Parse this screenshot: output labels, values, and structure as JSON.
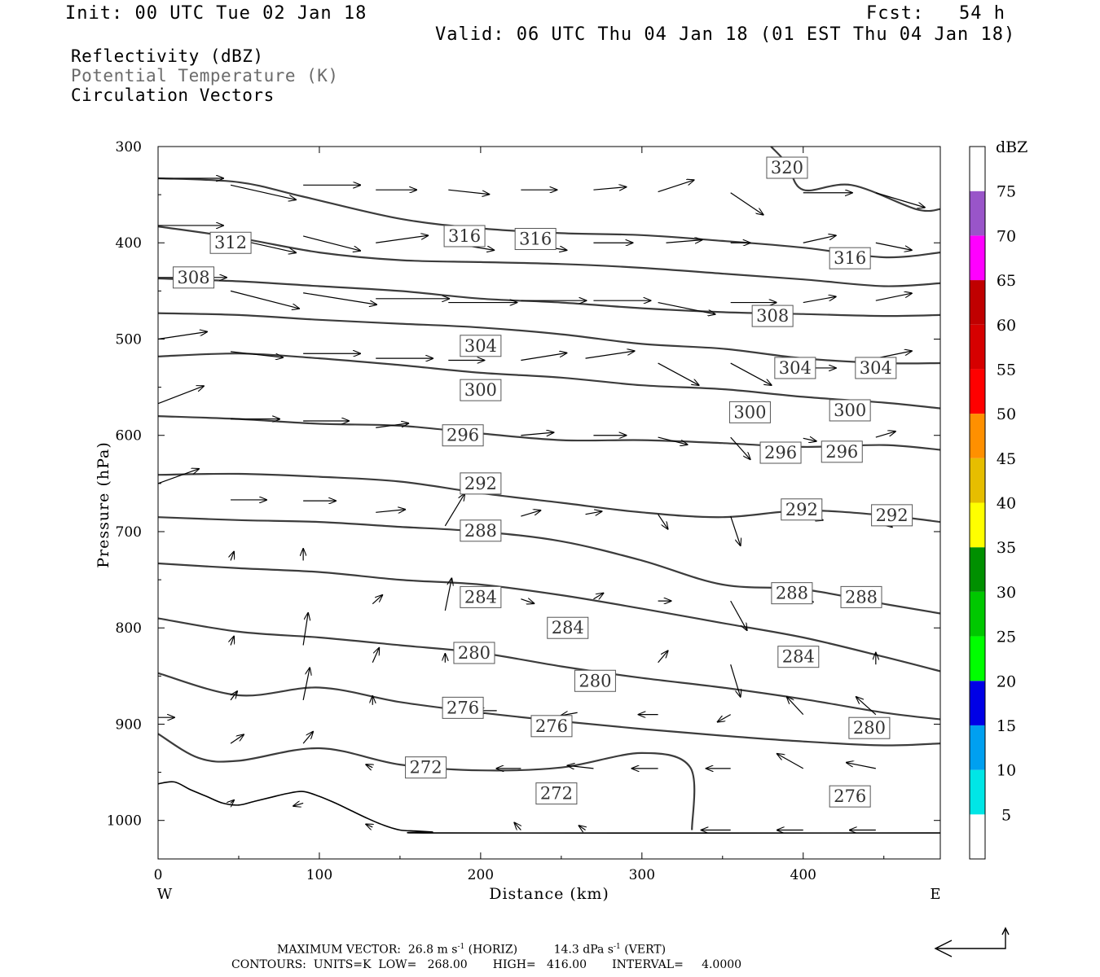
{
  "header": {
    "init": "Init: 00 UTC Tue 02 Jan 18",
    "fcst": "Fcst:   54 h",
    "valid": "Valid: 06 UTC Thu 04 Jan 18 (01 EST Thu 04 Jan 18)"
  },
  "fields": {
    "reflectivity": "Reflectivity (dBZ)",
    "theta": "Potential Temperature (K)",
    "vectors": "Circulation Vectors"
  },
  "footer": {
    "max_label": "MAXIMUM VECTOR:",
    "max_horiz": "26.8 m s",
    "max_horiz_exp": "-1",
    "max_horiz_tag": "(HORIZ)",
    "max_vert": "14.3 dPa s",
    "max_vert_exp": "-1",
    "max_vert_tag": "(VERT)",
    "contours": "CONTOURS:  UNITS=K  LOW=   268.00       HIGH=   416.00       INTERVAL=     4.0000"
  },
  "colorbar": {
    "title": "dBZ",
    "levels": [
      "5",
      "10",
      "15",
      "20",
      "25",
      "30",
      "35",
      "40",
      "45",
      "50",
      "55",
      "60",
      "65",
      "70",
      "75"
    ],
    "colors": [
      "#ffffff",
      "#00e6e6",
      "#00a0f0",
      "#0000e6",
      "#00ff00",
      "#00c800",
      "#009000",
      "#ffff00",
      "#e6be00",
      "#ff9000",
      "#ff0000",
      "#d60000",
      "#c00000",
      "#ff00ff",
      "#9955c9",
      "#ffffff"
    ]
  },
  "chart_data": {
    "type": "line",
    "xlabel": "Distance (km)",
    "ylabel": "Pressure (hPa)",
    "xlim": [
      0,
      485
    ],
    "ylim": [
      300,
      1040
    ],
    "y_scale": "linear, inverted",
    "grid": false,
    "xticks": [
      "0",
      "100",
      "200",
      "300",
      "400"
    ],
    "yticks": [
      "300",
      "400",
      "500",
      "600",
      "700",
      "800",
      "900",
      "1000"
    ],
    "x_endpoints": {
      "west": "W",
      "east": "E"
    },
    "contour_levels": [
      "272",
      "276",
      "280",
      "284",
      "288",
      "292",
      "296",
      "300",
      "304",
      "308",
      "312",
      "316",
      "320"
    ],
    "series": [
      {
        "name": "272",
        "x": [
          0,
          25,
          50,
          100,
          150,
          200,
          250,
          300,
          330,
          331
        ],
        "y": [
          910,
          935,
          938,
          925,
          942,
          948,
          945,
          930,
          945,
          1010
        ]
      },
      {
        "name": "276",
        "x": [
          0,
          50,
          100,
          150,
          200,
          250,
          300,
          350,
          400,
          450,
          485
        ],
        "y": [
          847,
          870,
          862,
          877,
          888,
          897,
          905,
          912,
          918,
          922,
          920
        ]
      },
      {
        "name": "280",
        "x": [
          0,
          50,
          100,
          150,
          200,
          250,
          300,
          350,
          400,
          450,
          485
        ],
        "y": [
          790,
          804,
          810,
          818,
          826,
          840,
          852,
          862,
          874,
          888,
          895
        ]
      },
      {
        "name": "284",
        "x": [
          0,
          50,
          100,
          150,
          200,
          250,
          300,
          350,
          400,
          450,
          485
        ],
        "y": [
          733,
          738,
          742,
          750,
          755,
          766,
          780,
          795,
          810,
          830,
          845
        ]
      },
      {
        "name": "288",
        "x": [
          0,
          50,
          100,
          150,
          200,
          250,
          300,
          350,
          400,
          450,
          485
        ],
        "y": [
          685,
          688,
          690,
          695,
          700,
          710,
          730,
          755,
          760,
          775,
          785
        ]
      },
      {
        "name": "292",
        "x": [
          0,
          50,
          100,
          150,
          200,
          250,
          300,
          350,
          400,
          450,
          485
        ],
        "y": [
          641,
          640,
          643,
          648,
          660,
          670,
          680,
          685,
          678,
          683,
          690
        ]
      },
      {
        "name": "296",
        "x": [
          0,
          50,
          100,
          150,
          200,
          250,
          300,
          350,
          400,
          450,
          485
        ],
        "y": [
          580,
          583,
          588,
          590,
          598,
          605,
          605,
          608,
          612,
          610,
          615
        ]
      },
      {
        "name": "300",
        "x": [
          0,
          50,
          100,
          150,
          200,
          250,
          300,
          350,
          400,
          450,
          485
        ],
        "y": [
          518,
          515,
          520,
          527,
          535,
          540,
          548,
          552,
          560,
          566,
          572
        ]
      },
      {
        "name": "304",
        "x": [
          0,
          50,
          100,
          150,
          200,
          250,
          300,
          350,
          400,
          450,
          485
        ],
        "y": [
          473,
          475,
          480,
          484,
          488,
          495,
          505,
          510,
          520,
          525,
          525
        ]
      },
      {
        "name": "308",
        "x": [
          0,
          50,
          100,
          150,
          200,
          250,
          300,
          350,
          400,
          450,
          485
        ],
        "y": [
          437,
          440,
          445,
          450,
          458,
          462,
          468,
          472,
          474,
          476,
          475
        ]
      },
      {
        "name": "312",
        "x": [
          0,
          50,
          100,
          150,
          200,
          250,
          300,
          350,
          400,
          450,
          485
        ],
        "y": [
          383,
          395,
          410,
          418,
          420,
          422,
          426,
          432,
          438,
          445,
          442
        ]
      },
      {
        "name": "316",
        "x": [
          0,
          50,
          90,
          150,
          200,
          250,
          300,
          350,
          400,
          450,
          485
        ],
        "y": [
          333,
          337,
          352,
          375,
          385,
          390,
          392,
          398,
          405,
          415,
          410
        ]
      },
      {
        "name": "320",
        "x": [
          380,
          390,
          400,
          430,
          470,
          485
        ],
        "y": [
          300,
          318,
          345,
          340,
          365,
          365
        ]
      }
    ],
    "contour_labels": [
      {
        "value": "320",
        "x": 390,
        "y": 322
      },
      {
        "value": "316",
        "x": 190,
        "y": 393
      },
      {
        "value": "316",
        "x": 234,
        "y": 396
      },
      {
        "value": "316",
        "x": 429,
        "y": 416
      },
      {
        "value": "312",
        "x": 45,
        "y": 400
      },
      {
        "value": "308",
        "x": 22,
        "y": 436
      },
      {
        "value": "308",
        "x": 381,
        "y": 476
      },
      {
        "value": "304",
        "x": 200,
        "y": 507
      },
      {
        "value": "304",
        "x": 395,
        "y": 530
      },
      {
        "value": "304",
        "x": 445,
        "y": 530
      },
      {
        "value": "300",
        "x": 200,
        "y": 553
      },
      {
        "value": "300",
        "x": 367,
        "y": 576
      },
      {
        "value": "300",
        "x": 429,
        "y": 574
      },
      {
        "value": "296",
        "x": 189,
        "y": 600
      },
      {
        "value": "296",
        "x": 386,
        "y": 618
      },
      {
        "value": "296",
        "x": 424,
        "y": 617
      },
      {
        "value": "292",
        "x": 200,
        "y": 650
      },
      {
        "value": "292",
        "x": 399,
        "y": 677
      },
      {
        "value": "292",
        "x": 455,
        "y": 683
      },
      {
        "value": "288",
        "x": 200,
        "y": 699
      },
      {
        "value": "288",
        "x": 393,
        "y": 764
      },
      {
        "value": "288",
        "x": 436,
        "y": 768
      },
      {
        "value": "284",
        "x": 200,
        "y": 768
      },
      {
        "value": "284",
        "x": 254,
        "y": 800
      },
      {
        "value": "284",
        "x": 397,
        "y": 830
      },
      {
        "value": "280",
        "x": 196,
        "y": 826
      },
      {
        "value": "280",
        "x": 271,
        "y": 855
      },
      {
        "value": "280",
        "x": 441,
        "y": 904
      },
      {
        "value": "276",
        "x": 189,
        "y": 883
      },
      {
        "value": "276",
        "x": 244,
        "y": 902
      },
      {
        "value": "276",
        "x": 429,
        "y": 975
      },
      {
        "value": "272",
        "x": 166,
        "y": 945
      },
      {
        "value": "272",
        "x": 247,
        "y": 972
      }
    ],
    "terrain": {
      "x": [
        0,
        10,
        20,
        30,
        40,
        50,
        60,
        70,
        80,
        90,
        100,
        110,
        120,
        130,
        140,
        150,
        160,
        170,
        180,
        485
      ],
      "y": [
        962,
        960,
        968,
        975,
        982,
        984,
        980,
        976,
        972,
        970,
        975,
        982,
        990,
        998,
        1005,
        1010,
        1011,
        1012,
        1013,
        1013
      ]
    },
    "vectors": [
      {
        "x": 0,
        "y": 333,
        "u": 40,
        "v": 0
      },
      {
        "x": 45,
        "y": 340,
        "u": 40,
        "v": 10
      },
      {
        "x": 90,
        "y": 340,
        "u": 35,
        "v": 0
      },
      {
        "x": 135,
        "y": 345,
        "u": 25,
        "v": 0
      },
      {
        "x": 180,
        "y": 345,
        "u": 25,
        "v": 3
      },
      {
        "x": 225,
        "y": 345,
        "u": 22,
        "v": 0
      },
      {
        "x": 270,
        "y": 345,
        "u": 20,
        "v": -2
      },
      {
        "x": 310,
        "y": 347,
        "u": 22,
        "v": -8
      },
      {
        "x": 355,
        "y": 348,
        "u": 20,
        "v": 15
      },
      {
        "x": 400,
        "y": 348,
        "u": 30,
        "v": 0
      },
      {
        "x": 445,
        "y": 348,
        "u": 30,
        "v": 10
      },
      {
        "x": 0,
        "y": 382,
        "u": 40,
        "v": 0
      },
      {
        "x": 45,
        "y": 395,
        "u": 40,
        "v": 10
      },
      {
        "x": 90,
        "y": 393,
        "u": 35,
        "v": 10
      },
      {
        "x": 135,
        "y": 400,
        "u": 32,
        "v": -5
      },
      {
        "x": 180,
        "y": 400,
        "u": 28,
        "v": 5
      },
      {
        "x": 225,
        "y": 400,
        "u": 28,
        "v": 5
      },
      {
        "x": 270,
        "y": 400,
        "u": 24,
        "v": 0
      },
      {
        "x": 315,
        "y": 400,
        "u": 22,
        "v": -2
      },
      {
        "x": 355,
        "y": 400,
        "u": 12,
        "v": 0
      },
      {
        "x": 400,
        "y": 400,
        "u": 20,
        "v": -5
      },
      {
        "x": 445,
        "y": 400,
        "u": 22,
        "v": 5
      },
      {
        "x": 0,
        "y": 436,
        "u": 42,
        "v": 0
      },
      {
        "x": 45,
        "y": 450,
        "u": 42,
        "v": 12
      },
      {
        "x": 90,
        "y": 452,
        "u": 45,
        "v": 8
      },
      {
        "x": 135,
        "y": 458,
        "u": 45,
        "v": 0
      },
      {
        "x": 180,
        "y": 462,
        "u": 42,
        "v": 0
      },
      {
        "x": 225,
        "y": 460,
        "u": 40,
        "v": 0
      },
      {
        "x": 270,
        "y": 460,
        "u": 35,
        "v": 0
      },
      {
        "x": 310,
        "y": 462,
        "u": 35,
        "v": 8
      },
      {
        "x": 355,
        "y": 462,
        "u": 28,
        "v": 0
      },
      {
        "x": 400,
        "y": 462,
        "u": 20,
        "v": -4
      },
      {
        "x": 445,
        "y": 460,
        "u": 22,
        "v": -5
      },
      {
        "x": 0,
        "y": 500,
        "u": 30,
        "v": -5
      },
      {
        "x": 45,
        "y": 513,
        "u": 32,
        "v": 4
      },
      {
        "x": 90,
        "y": 515,
        "u": 35,
        "v": 0
      },
      {
        "x": 135,
        "y": 520,
        "u": 35,
        "v": 0
      },
      {
        "x": 180,
        "y": 522,
        "u": 22,
        "v": 0
      },
      {
        "x": 225,
        "y": 522,
        "u": 28,
        "v": -5
      },
      {
        "x": 265,
        "y": 520,
        "u": 30,
        "v": -5
      },
      {
        "x": 310,
        "y": 525,
        "u": 25,
        "v": 15
      },
      {
        "x": 355,
        "y": 525,
        "u": 25,
        "v": 15
      },
      {
        "x": 400,
        "y": 530,
        "u": 20,
        "v": 0
      },
      {
        "x": 445,
        "y": 520,
        "u": 22,
        "v": -5
      },
      {
        "x": 0,
        "y": 567,
        "u": 28,
        "v": -12
      },
      {
        "x": 45,
        "y": 583,
        "u": 30,
        "v": 0
      },
      {
        "x": 90,
        "y": 585,
        "u": 28,
        "v": 0
      },
      {
        "x": 135,
        "y": 592,
        "u": 20,
        "v": -3
      },
      {
        "x": 225,
        "y": 600,
        "u": 20,
        "v": -2
      },
      {
        "x": 270,
        "y": 600,
        "u": 20,
        "v": 0
      },
      {
        "x": 310,
        "y": 602,
        "u": 18,
        "v": 5
      },
      {
        "x": 355,
        "y": 602,
        "u": 12,
        "v": 15
      },
      {
        "x": 400,
        "y": 603,
        "u": 8,
        "v": 2
      },
      {
        "x": 445,
        "y": 602,
        "u": 12,
        "v": -4
      },
      {
        "x": 0,
        "y": 650,
        "u": 25,
        "v": -10
      },
      {
        "x": 45,
        "y": 667,
        "u": 22,
        "v": 0
      },
      {
        "x": 90,
        "y": 668,
        "u": 20,
        "v": 0
      },
      {
        "x": 135,
        "y": 680,
        "u": 18,
        "v": -2
      },
      {
        "x": 178,
        "y": 694,
        "u": 12,
        "v": -22
      },
      {
        "x": 225,
        "y": 684,
        "u": 12,
        "v": -4
      },
      {
        "x": 265,
        "y": 682,
        "u": 10,
        "v": -2
      },
      {
        "x": 310,
        "y": 682,
        "u": 6,
        "v": 10
      },
      {
        "x": 355,
        "y": 684,
        "u": 6,
        "v": 20
      },
      {
        "x": 400,
        "y": 682,
        "u": 12,
        "v": 4
      },
      {
        "x": 445,
        "y": 683,
        "u": 10,
        "v": 8
      },
      {
        "x": 45,
        "y": 730,
        "u": 2,
        "v": -6
      },
      {
        "x": 90,
        "y": 730,
        "u": 0,
        "v": -8
      },
      {
        "x": 133,
        "y": 775,
        "u": 6,
        "v": -6
      },
      {
        "x": 178,
        "y": 782,
        "u": 4,
        "v": -22
      },
      {
        "x": 225,
        "y": 770,
        "u": 8,
        "v": 3
      },
      {
        "x": 270,
        "y": 770,
        "u": 6,
        "v": -4
      },
      {
        "x": 310,
        "y": 772,
        "u": 8,
        "v": 0
      },
      {
        "x": 355,
        "y": 772,
        "u": 10,
        "v": 20
      },
      {
        "x": 400,
        "y": 770,
        "u": 6,
        "v": 2
      },
      {
        "x": 45,
        "y": 818,
        "u": 2,
        "v": -6
      },
      {
        "x": 90,
        "y": 818,
        "u": 3,
        "v": -22
      },
      {
        "x": 133,
        "y": 836,
        "u": 4,
        "v": -10
      },
      {
        "x": 178,
        "y": 836,
        "u": 0,
        "v": -6
      },
      {
        "x": 310,
        "y": 836,
        "u": 6,
        "v": -8
      },
      {
        "x": 355,
        "y": 838,
        "u": 6,
        "v": 22
      },
      {
        "x": 445,
        "y": 838,
        "u": 0,
        "v": -8
      },
      {
        "x": 45,
        "y": 875,
        "u": 4,
        "v": -6
      },
      {
        "x": 90,
        "y": 875,
        "u": 4,
        "v": -22
      },
      {
        "x": 133,
        "y": 880,
        "u": 0,
        "v": -6
      },
      {
        "x": 210,
        "y": 886,
        "u": -12,
        "v": 0
      },
      {
        "x": 260,
        "y": 888,
        "u": -10,
        "v": 2
      },
      {
        "x": 310,
        "y": 890,
        "u": -12,
        "v": 0
      },
      {
        "x": 355,
        "y": 890,
        "u": -8,
        "v": 5
      },
      {
        "x": 400,
        "y": 890,
        "u": -10,
        "v": -12
      },
      {
        "x": 445,
        "y": 890,
        "u": -12,
        "v": -12
      },
      {
        "x": 0,
        "y": 893,
        "u": 10,
        "v": 0
      },
      {
        "x": 45,
        "y": 920,
        "u": 8,
        "v": -6
      },
      {
        "x": 90,
        "y": 920,
        "u": 6,
        "v": -8
      },
      {
        "x": 133,
        "y": 945,
        "u": -4,
        "v": -2
      },
      {
        "x": 225,
        "y": 946,
        "u": -15,
        "v": 0
      },
      {
        "x": 270,
        "y": 946,
        "u": -16,
        "v": -2
      },
      {
        "x": 310,
        "y": 946,
        "u": -16,
        "v": 0
      },
      {
        "x": 355,
        "y": 946,
        "u": -15,
        "v": 0
      },
      {
        "x": 400,
        "y": 946,
        "u": -16,
        "v": -10
      },
      {
        "x": 445,
        "y": 946,
        "u": -18,
        "v": -4
      },
      {
        "x": 45,
        "y": 982,
        "u": 2,
        "v": -2
      },
      {
        "x": 90,
        "y": 982,
        "u": -6,
        "v": 2
      },
      {
        "x": 133,
        "y": 1007,
        "u": -4,
        "v": -2
      },
      {
        "x": 225,
        "y": 1010,
        "u": -4,
        "v": -5
      },
      {
        "x": 265,
        "y": 1010,
        "u": -4,
        "v": -3
      },
      {
        "x": 355,
        "y": 1010,
        "u": -18,
        "v": 0
      },
      {
        "x": 400,
        "y": 1010,
        "u": -16,
        "v": 0
      },
      {
        "x": 445,
        "y": 1010,
        "u": -16,
        "v": 0
      }
    ]
  }
}
